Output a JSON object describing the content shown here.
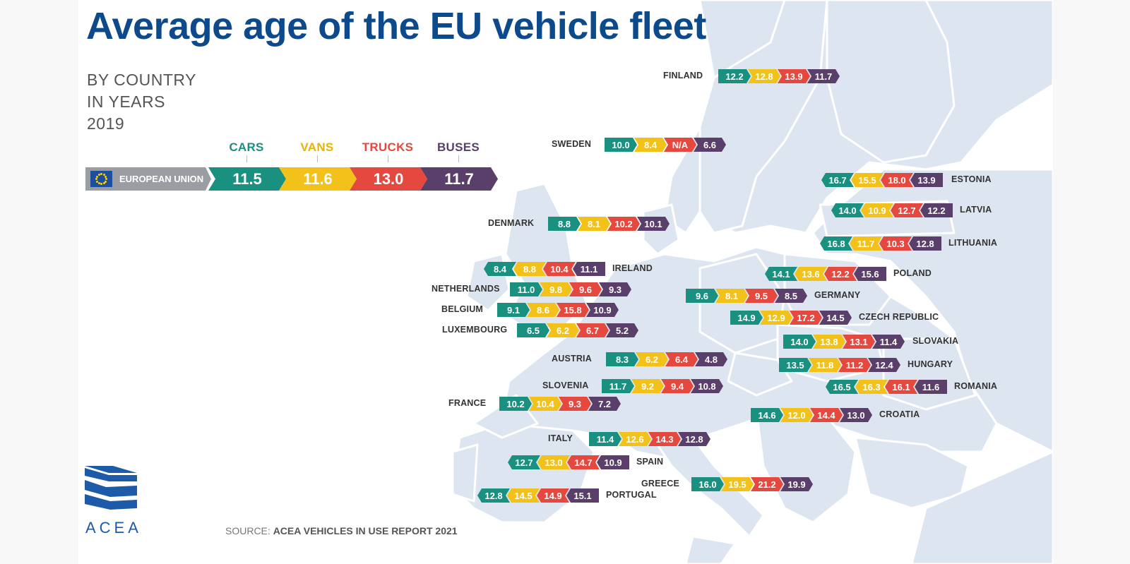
{
  "title": "Average age of the EU vehicle fleet",
  "subtitle": [
    "BY COUNTRY",
    "IN YEARS",
    "2019"
  ],
  "source_prefix": "SOURCE:",
  "source_text": "ACEA VEHICLES IN USE REPORT 2021",
  "logo_text": "ACEA",
  "colors": {
    "cars": "#1a9080",
    "vans": "#f2c21b",
    "trucks": "#e4483e",
    "buses": "#5b3f6b",
    "title": "#0d4a8c",
    "map_land": "#dde6f0",
    "map_border": "#ffffff"
  },
  "icons": [
    "eu-flag-icon",
    "acea-logo-icon"
  ],
  "chart_data": {
    "type": "table",
    "unit": "years",
    "series": [
      "CARS",
      "VANS",
      "TRUCKS",
      "BUSES"
    ],
    "eu": {
      "label": "EUROPEAN UNION",
      "values": [
        "11.5",
        "11.6",
        "13.0",
        "11.7"
      ]
    },
    "countries": [
      {
        "name": "FINLAND",
        "values": [
          "12.2",
          "12.8",
          "13.9",
          "11.7"
        ]
      },
      {
        "name": "SWEDEN",
        "values": [
          "10.0",
          "8.4",
          "N/A",
          "6.6"
        ]
      },
      {
        "name": "ESTONIA",
        "values": [
          "16.7",
          "15.5",
          "18.0",
          "13.9"
        ]
      },
      {
        "name": "LATVIA",
        "values": [
          "14.0",
          "10.9",
          "12.7",
          "12.2"
        ]
      },
      {
        "name": "LITHUANIA",
        "values": [
          "16.8",
          "11.7",
          "10.3",
          "12.8"
        ]
      },
      {
        "name": "DENMARK",
        "values": [
          "8.8",
          "8.1",
          "10.2",
          "10.1"
        ]
      },
      {
        "name": "IRELAND",
        "values": [
          "8.4",
          "8.8",
          "10.4",
          "11.1"
        ]
      },
      {
        "name": "NETHERLANDS",
        "values": [
          "11.0",
          "9.8",
          "9.6",
          "9.3"
        ]
      },
      {
        "name": "BELGIUM",
        "values": [
          "9.1",
          "8.6",
          "15.8",
          "10.9"
        ]
      },
      {
        "name": "LUXEMBOURG",
        "values": [
          "6.5",
          "6.2",
          "6.7",
          "5.2"
        ]
      },
      {
        "name": "POLAND",
        "values": [
          "14.1",
          "13.6",
          "12.2",
          "15.6"
        ]
      },
      {
        "name": "GERMANY",
        "values": [
          "9.6",
          "8.1",
          "9.5",
          "8.5"
        ]
      },
      {
        "name": "CZECH REPUBLIC",
        "values": [
          "14.9",
          "12.9",
          "17.2",
          "14.5"
        ]
      },
      {
        "name": "SLOVAKIA",
        "values": [
          "14.0",
          "13.8",
          "13.1",
          "11.4"
        ]
      },
      {
        "name": "AUSTRIA",
        "values": [
          "8.3",
          "6.2",
          "6.4",
          "4.8"
        ]
      },
      {
        "name": "HUNGARY",
        "values": [
          "13.5",
          "11.8",
          "11.2",
          "12.4"
        ]
      },
      {
        "name": "SLOVENIA",
        "values": [
          "11.7",
          "9.2",
          "9.4",
          "10.8"
        ]
      },
      {
        "name": "ROMANIA",
        "values": [
          "16.5",
          "16.3",
          "16.1",
          "11.6"
        ]
      },
      {
        "name": "FRANCE",
        "values": [
          "10.2",
          "10.4",
          "9.3",
          "7.2"
        ]
      },
      {
        "name": "CROATIA",
        "values": [
          "14.6",
          "12.0",
          "14.4",
          "13.0"
        ]
      },
      {
        "name": "ITALY",
        "values": [
          "11.4",
          "12.6",
          "14.3",
          "12.8"
        ]
      },
      {
        "name": "SPAIN",
        "values": [
          "12.7",
          "13.0",
          "14.7",
          "10.9"
        ]
      },
      {
        "name": "GREECE",
        "values": [
          "16.0",
          "19.5",
          "21.2",
          "19.9"
        ]
      },
      {
        "name": "PORTUGAL",
        "values": [
          "12.8",
          "14.5",
          "14.9",
          "15.1"
        ]
      }
    ]
  }
}
